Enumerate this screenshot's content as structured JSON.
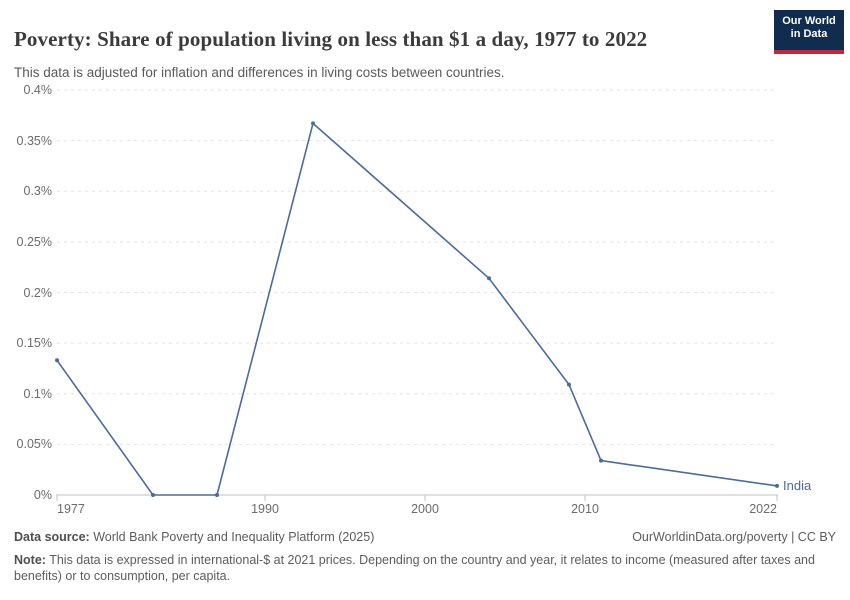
{
  "header": {
    "title": "Poverty: Share of population living on less than $1 a day, 1977 to 2022",
    "subtitle": "This data is adjusted for inflation and differences in living costs between countries.",
    "logo": {
      "line1": "Our World",
      "line2": "in Data"
    }
  },
  "colors": {
    "line": "#4c6a9c",
    "grid": "#e2e2e2",
    "axis": "#c0c0c0",
    "tick_text": "#6b6b6b",
    "logo_bg": "#102d4f",
    "logo_red": "#c0293c"
  },
  "chart_data": {
    "type": "line",
    "title": "Poverty: Share of population living on less than $1 a day, 1977 to 2022",
    "subtitle": "This data is adjusted for inflation and differences in living costs between countries.",
    "xlabel": "",
    "ylabel": "",
    "unit": "%",
    "xlim": [
      1977,
      2022
    ],
    "ylim": [
      0,
      0.4
    ],
    "grid": true,
    "legend_position": "end-of-line",
    "series": [
      {
        "name": "India",
        "x": [
          1977,
          1983,
          1987,
          1993,
          2004,
          2009,
          2011,
          2022
        ],
        "values": [
          0.133,
          0,
          0,
          0.367,
          0.214,
          0.109,
          0.034,
          0.009
        ]
      }
    ],
    "y_ticks": [
      {
        "value": 0,
        "label": "0%"
      },
      {
        "value": 0.05,
        "label": "0.05%"
      },
      {
        "value": 0.1,
        "label": "0.1%"
      },
      {
        "value": 0.15,
        "label": "0.15%"
      },
      {
        "value": 0.2,
        "label": "0.2%"
      },
      {
        "value": 0.25,
        "label": "0.25%"
      },
      {
        "value": 0.3,
        "label": "0.3%"
      },
      {
        "value": 0.35,
        "label": "0.35%"
      },
      {
        "value": 0.4,
        "label": "0.4%"
      }
    ],
    "x_ticks": [
      {
        "value": 1977,
        "label": "1977"
      },
      {
        "value": 1990,
        "label": "1990"
      },
      {
        "value": 2000,
        "label": "2000"
      },
      {
        "value": 2010,
        "label": "2010"
      },
      {
        "value": 2022,
        "label": "2022"
      }
    ]
  },
  "footer": {
    "datasource_label": "Data source:",
    "datasource": "World Bank Poverty and Inequality Platform (2025)",
    "attribution": "OurWorldinData.org/poverty | CC BY",
    "note_label": "Note:",
    "note": "This data is expressed in international-$ at 2021 prices. Depending on the country and year, it relates to income (measured after taxes and benefits) or to consumption, per capita."
  }
}
